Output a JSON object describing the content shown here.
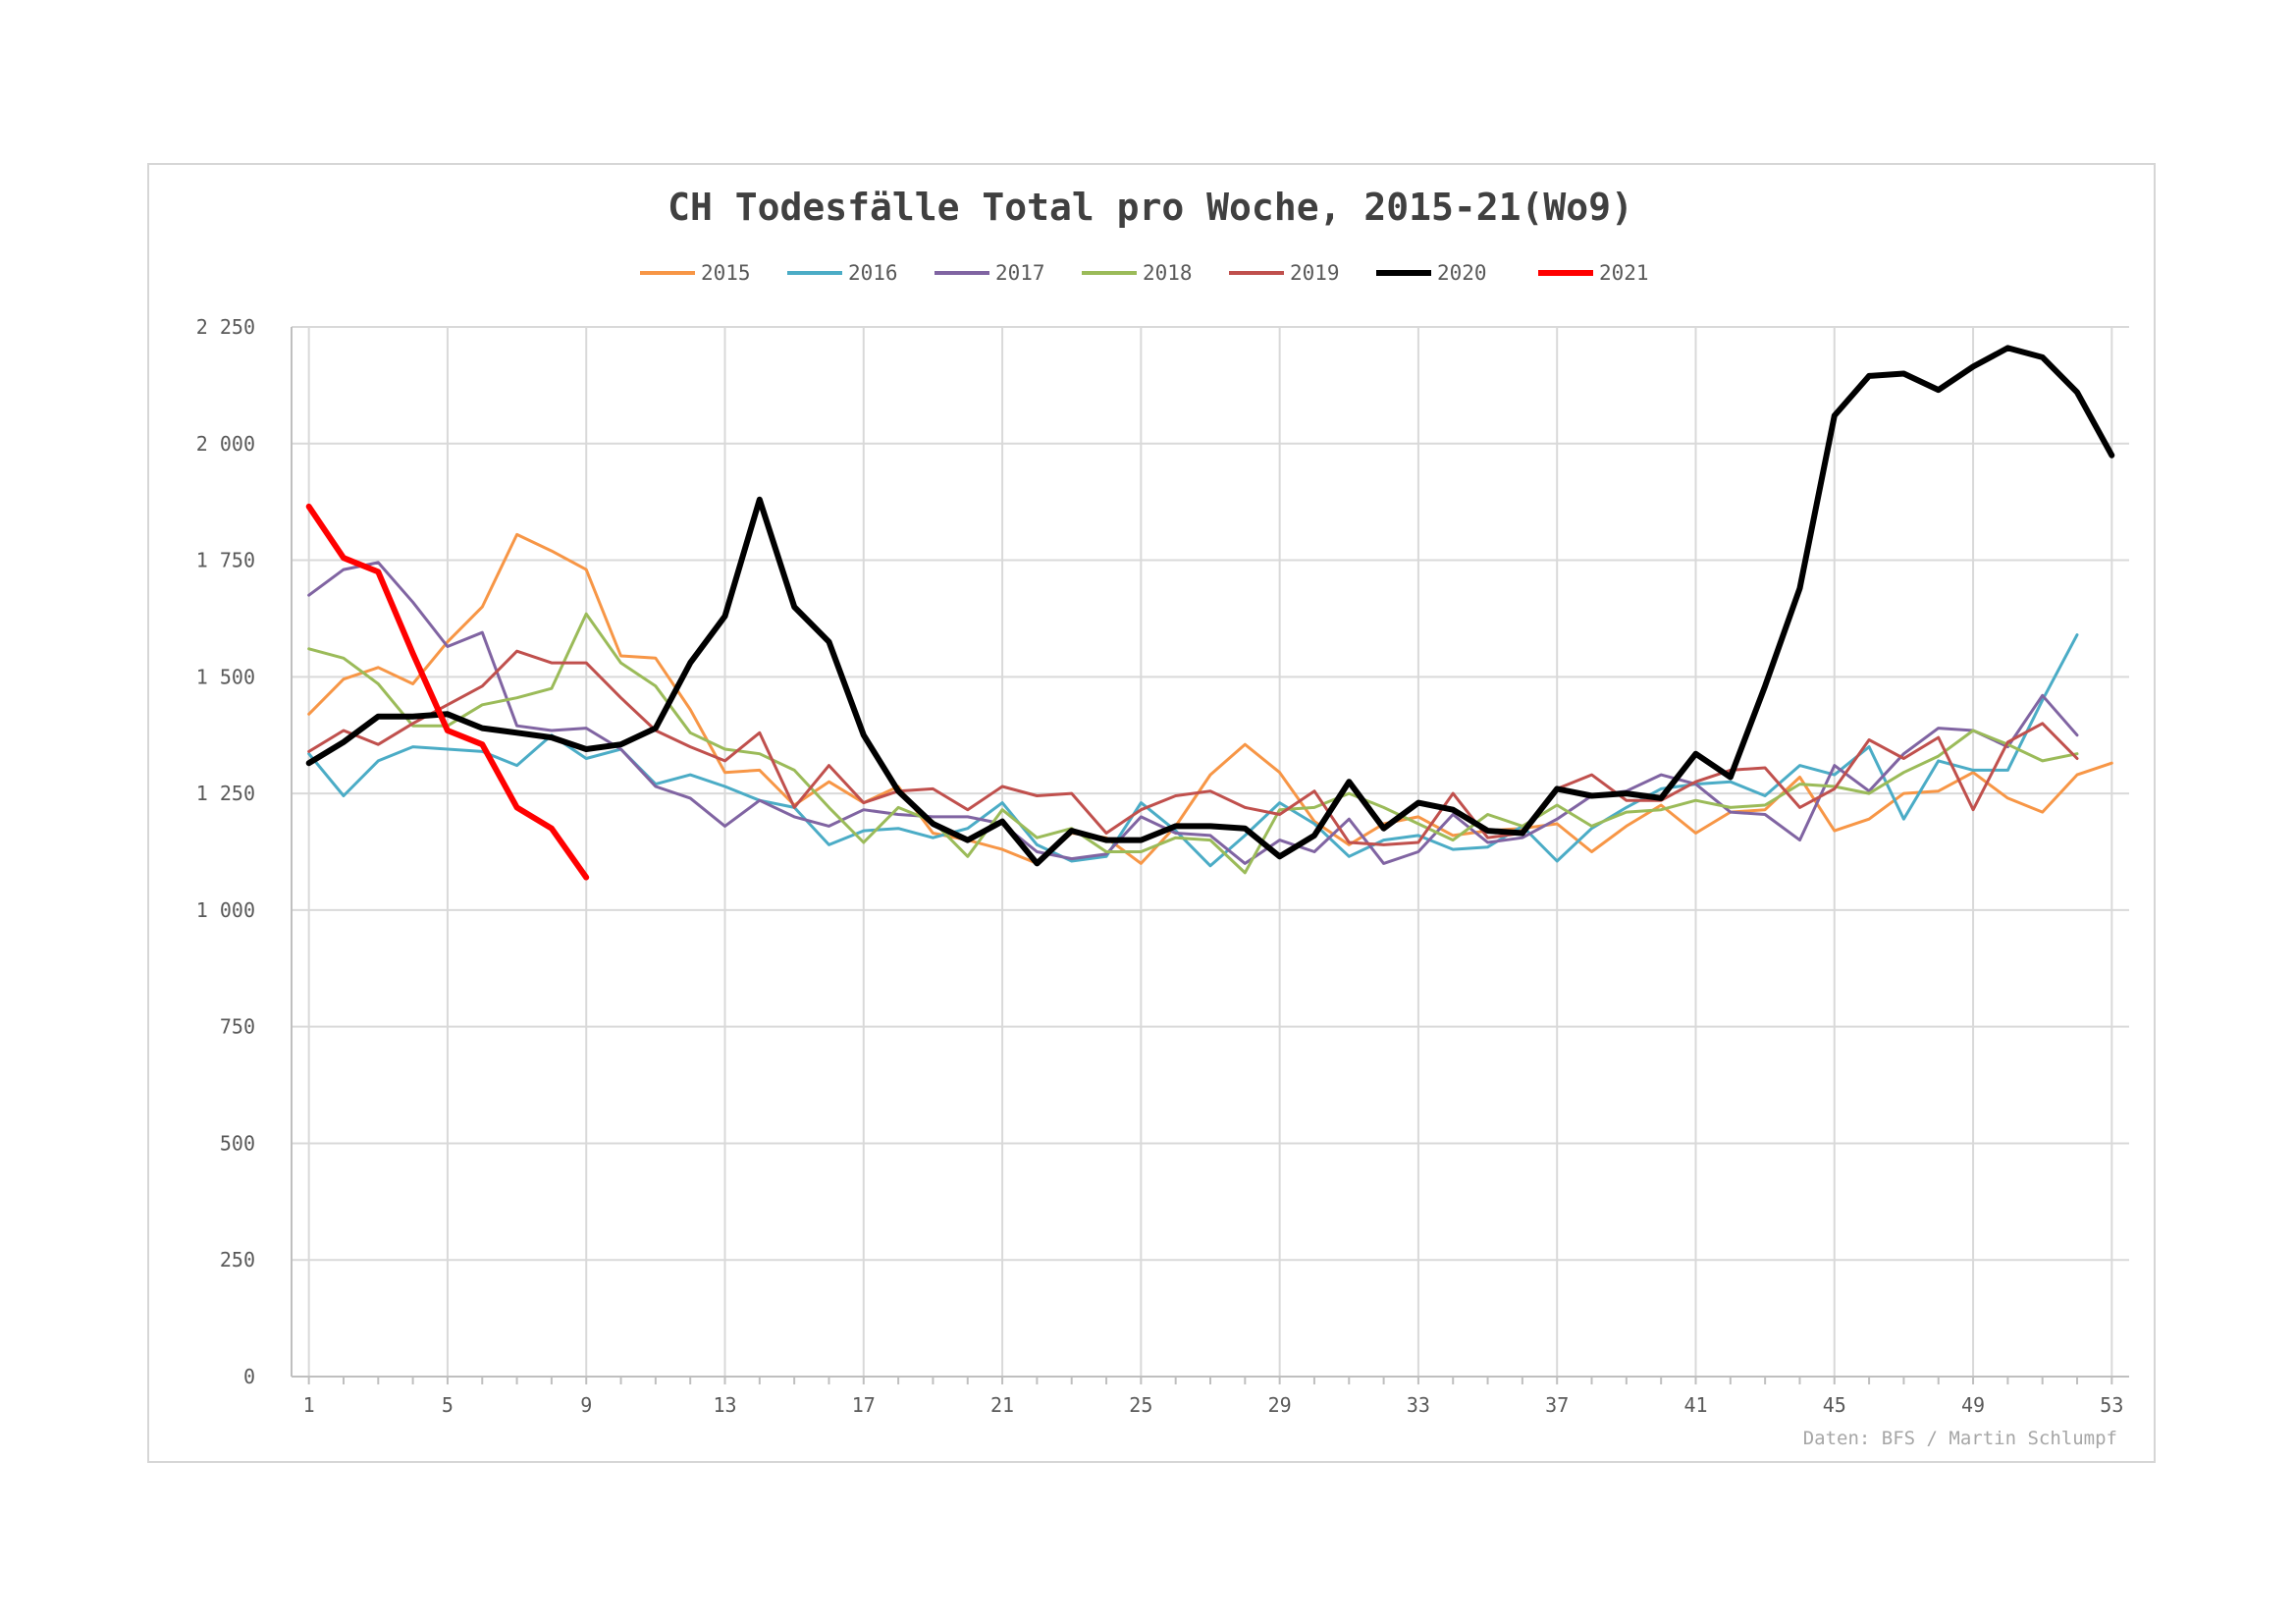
{
  "chart_data": {
    "type": "line",
    "title": "CH Todesfälle Total pro Woche, 2015-21(Wo9)",
    "source_note": "Daten: BFS / Martin Schlumpf",
    "xlabel": "",
    "ylabel": "",
    "ylim": [
      0,
      2250
    ],
    "y_ticks": [
      0,
      250,
      500,
      750,
      1000,
      1250,
      1500,
      1750,
      2000,
      2250
    ],
    "y_tick_labels": [
      "0",
      "250",
      "500",
      "750",
      "1 000",
      "1 250",
      "1 500",
      "1 750",
      "2 000",
      "2 250"
    ],
    "xlim": [
      0.5,
      53.5
    ],
    "x_ticks": [
      1,
      5,
      9,
      13,
      17,
      21,
      25,
      29,
      33,
      37,
      41,
      45,
      49,
      53
    ],
    "x_tick_labels": [
      "1",
      "5",
      "9",
      "13",
      "17",
      "21",
      "25",
      "29",
      "33",
      "37",
      "41",
      "45",
      "49",
      "53"
    ],
    "grid": true,
    "legend_position": "top",
    "series": [
      {
        "name": "2015",
        "color": "#f79646",
        "width": 3,
        "start_week": 1,
        "values": [
          1420,
          1495,
          1520,
          1485,
          1575,
          1650,
          1805,
          1770,
          1730,
          1545,
          1540,
          1430,
          1295,
          1300,
          1225,
          1275,
          1230,
          1265,
          1165,
          1150,
          1130,
          1100,
          1165,
          1155,
          1100,
          1180,
          1290,
          1355,
          1295,
          1190,
          1140,
          1185,
          1200,
          1160,
          1170,
          1175,
          1185,
          1125,
          1180,
          1225,
          1165,
          1210,
          1215,
          1285,
          1170,
          1195,
          1250,
          1255,
          1295,
          1240,
          1210,
          1290,
          1315
        ]
      },
      {
        "name": "2016",
        "color": "#4bacc6",
        "width": 3,
        "start_week": 1,
        "values": [
          1335,
          1245,
          1320,
          1350,
          1345,
          1340,
          1310,
          1375,
          1325,
          1345,
          1270,
          1290,
          1265,
          1235,
          1220,
          1140,
          1170,
          1175,
          1155,
          1175,
          1230,
          1140,
          1105,
          1115,
          1230,
          1170,
          1095,
          1160,
          1230,
          1185,
          1115,
          1150,
          1160,
          1130,
          1135,
          1180,
          1105,
          1175,
          1220,
          1260,
          1270,
          1275,
          1245,
          1310,
          1290,
          1350,
          1195,
          1320,
          1300,
          1300,
          1450,
          1590
        ]
      },
      {
        "name": "2017",
        "color": "#8064a2",
        "width": 3,
        "start_week": 1,
        "values": [
          1675,
          1730,
          1745,
          1660,
          1565,
          1595,
          1395,
          1385,
          1390,
          1345,
          1265,
          1240,
          1180,
          1235,
          1200,
          1180,
          1215,
          1205,
          1200,
          1200,
          1185,
          1125,
          1110,
          1120,
          1200,
          1165,
          1160,
          1100,
          1150,
          1125,
          1195,
          1100,
          1125,
          1205,
          1145,
          1155,
          1195,
          1245,
          1255,
          1290,
          1270,
          1210,
          1205,
          1150,
          1310,
          1255,
          1335,
          1390,
          1385,
          1350,
          1460,
          1375
        ]
      },
      {
        "name": "2018",
        "color": "#9bbb59",
        "width": 3,
        "start_week": 1,
        "values": [
          1560,
          1540,
          1485,
          1395,
          1395,
          1440,
          1455,
          1475,
          1635,
          1530,
          1480,
          1380,
          1345,
          1335,
          1300,
          1220,
          1145,
          1220,
          1190,
          1115,
          1215,
          1155,
          1175,
          1125,
          1125,
          1155,
          1150,
          1080,
          1215,
          1220,
          1250,
          1220,
          1185,
          1150,
          1205,
          1180,
          1225,
          1180,
          1210,
          1215,
          1235,
          1220,
          1225,
          1270,
          1265,
          1250,
          1295,
          1330,
          1385,
          1355,
          1320,
          1335
        ]
      },
      {
        "name": "2019",
        "color": "#c0504d",
        "width": 3,
        "start_week": 1,
        "values": [
          1340,
          1385,
          1355,
          1400,
          1440,
          1480,
          1555,
          1530,
          1530,
          1455,
          1385,
          1350,
          1320,
          1380,
          1220,
          1310,
          1230,
          1255,
          1260,
          1215,
          1265,
          1245,
          1250,
          1165,
          1215,
          1245,
          1255,
          1220,
          1205,
          1255,
          1145,
          1140,
          1145,
          1250,
          1155,
          1165,
          1260,
          1290,
          1235,
          1235,
          1275,
          1300,
          1305,
          1220,
          1260,
          1365,
          1325,
          1370,
          1215,
          1360,
          1400,
          1325
        ]
      },
      {
        "name": "2020",
        "color": "#000000",
        "width": 6,
        "start_week": 1,
        "values": [
          1315,
          1360,
          1415,
          1415,
          1420,
          1390,
          1380,
          1370,
          1345,
          1355,
          1390,
          1530,
          1630,
          1880,
          1650,
          1575,
          1375,
          1255,
          1185,
          1150,
          1190,
          1100,
          1170,
          1150,
          1150,
          1180,
          1180,
          1175,
          1115,
          1160,
          1275,
          1175,
          1230,
          1215,
          1170,
          1165,
          1260,
          1245,
          1250,
          1240,
          1335,
          1285,
          1480,
          1690,
          2060,
          2145,
          2150,
          2115,
          2165,
          2205,
          2185,
          2110,
          1975
        ]
      },
      {
        "name": "2021",
        "color": "#ff0000",
        "width": 6,
        "start_week": 1,
        "values": [
          1865,
          1755,
          1725,
          1550,
          1385,
          1355,
          1220,
          1175,
          1070
        ]
      }
    ]
  }
}
